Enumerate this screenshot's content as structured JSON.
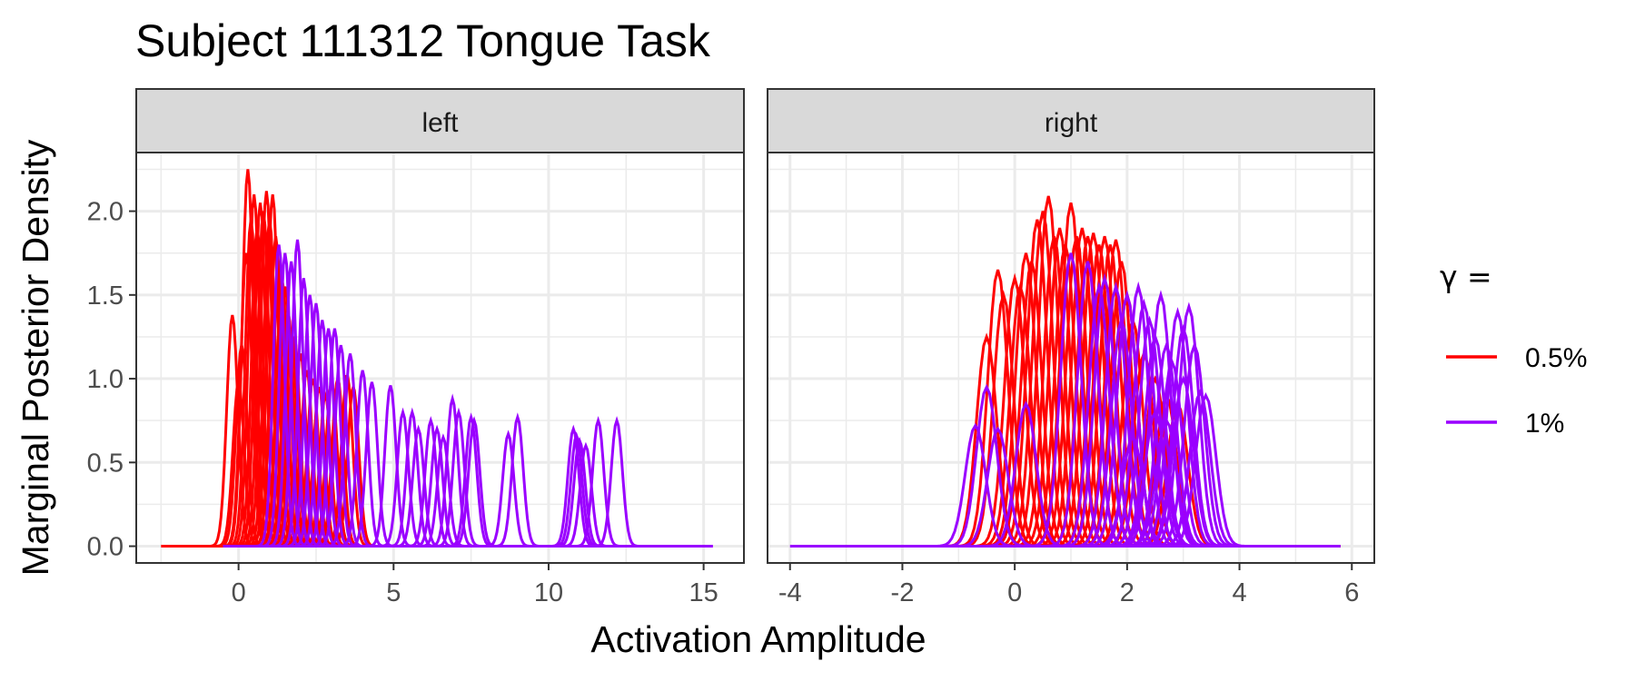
{
  "chart_data": {
    "type": "line",
    "title": "Subject 111312 Tongue Task",
    "xlabel": "Activation Amplitude",
    "ylabel": "Marginal Posterior Density",
    "grid": true,
    "legend_position": "right",
    "legend": {
      "title": "γ =",
      "entries": [
        {
          "label": "0.5%",
          "color": "#ff0000"
        },
        {
          "label": "1%",
          "color": "#9a00ff"
        }
      ]
    },
    "y_ticks": [
      "0.0",
      "0.5",
      "1.0",
      "1.5",
      "2.0"
    ],
    "ylim": [
      -0.1,
      2.35
    ],
    "panels": [
      {
        "strip": "left",
        "xlim": [
          -3.3,
          16.3
        ],
        "x_ticks": [
          "0",
          "5",
          "10",
          "15"
        ],
        "x_tick_values": [
          0,
          5,
          10,
          15
        ],
        "series": [
          {
            "name": "0.5%",
            "color": "#ff0000",
            "range": [
              -2.5,
              4.6
            ],
            "peaks": [
              [
                -0.2,
                1.38
              ],
              [
                0.0,
                0.98
              ],
              [
                0.1,
                1.2
              ],
              [
                0.25,
                1.75
              ],
              [
                0.3,
                2.25
              ],
              [
                0.4,
                1.95
              ],
              [
                0.5,
                2.1
              ],
              [
                0.6,
                1.9
              ],
              [
                0.7,
                2.05
              ],
              [
                0.8,
                2.0
              ],
              [
                0.9,
                2.12
              ],
              [
                1.0,
                1.95
              ],
              [
                1.1,
                2.1
              ],
              [
                1.2,
                1.85
              ],
              [
                1.3,
                1.7
              ],
              [
                1.4,
                1.6
              ],
              [
                1.5,
                1.55
              ],
              [
                1.6,
                1.4
              ],
              [
                1.7,
                1.3
              ],
              [
                1.8,
                1.25
              ],
              [
                2.0,
                1.15
              ],
              [
                2.2,
                1.05
              ],
              [
                2.4,
                1.0
              ],
              [
                2.6,
                0.95
              ],
              [
                2.8,
                0.9
              ],
              [
                3.0,
                0.98
              ],
              [
                3.2,
                1.0
              ],
              [
                3.5,
                1.02
              ],
              [
                3.7,
                0.95
              ]
            ]
          },
          {
            "name": "1%",
            "color": "#9a00ff",
            "range": [
              -0.5,
              15.3
            ],
            "peaks": [
              [
                1.3,
                1.8
              ],
              [
                1.5,
                1.75
              ],
              [
                1.7,
                1.7
              ],
              [
                1.9,
                1.83
              ],
              [
                2.1,
                1.6
              ],
              [
                2.3,
                1.5
              ],
              [
                2.5,
                1.45
              ],
              [
                2.7,
                1.35
              ],
              [
                2.9,
                1.3
              ],
              [
                3.1,
                1.3
              ],
              [
                3.3,
                1.2
              ],
              [
                3.6,
                1.15
              ],
              [
                4.0,
                1.05
              ],
              [
                4.3,
                0.98
              ],
              [
                4.9,
                0.96
              ],
              [
                5.3,
                0.8
              ],
              [
                5.6,
                0.8
              ],
              [
                5.8,
                0.7
              ],
              [
                6.2,
                0.75
              ],
              [
                6.4,
                0.7
              ],
              [
                6.6,
                0.65
              ],
              [
                6.9,
                0.88
              ],
              [
                7.1,
                0.8
              ],
              [
                7.5,
                0.77
              ],
              [
                7.6,
                0.75
              ],
              [
                8.7,
                0.67
              ],
              [
                9.0,
                0.77
              ],
              [
                10.8,
                0.7
              ],
              [
                10.9,
                0.66
              ],
              [
                11.0,
                0.63
              ],
              [
                11.2,
                0.6
              ],
              [
                11.6,
                0.75
              ],
              [
                12.2,
                0.75
              ]
            ]
          }
        ]
      },
      {
        "strip": "right",
        "xlim": [
          -4.4,
          6.4
        ],
        "x_ticks": [
          "-4",
          "-2",
          "0",
          "2",
          "4",
          "6"
        ],
        "x_tick_values": [
          -4,
          -2,
          0,
          2,
          4,
          6
        ],
        "series": [
          {
            "name": "0.5%",
            "color": "#ff0000",
            "range": [
              -2.5,
              5.8
            ],
            "peaks": [
              [
                -0.5,
                1.25
              ],
              [
                -0.3,
                1.65
              ],
              [
                -0.2,
                1.5
              ],
              [
                0.0,
                1.6
              ],
              [
                0.1,
                1.55
              ],
              [
                0.2,
                1.75
              ],
              [
                0.3,
                1.7
              ],
              [
                0.4,
                1.95
              ],
              [
                0.5,
                2.0
              ],
              [
                0.6,
                2.09
              ],
              [
                0.7,
                1.85
              ],
              [
                0.8,
                1.9
              ],
              [
                0.9,
                1.8
              ],
              [
                1.0,
                2.05
              ],
              [
                1.1,
                1.85
              ],
              [
                1.2,
                1.9
              ],
              [
                1.3,
                1.85
              ],
              [
                1.4,
                1.87
              ],
              [
                1.5,
                1.8
              ],
              [
                1.6,
                1.85
              ],
              [
                1.7,
                1.8
              ],
              [
                1.8,
                1.83
              ],
              [
                1.9,
                1.7
              ],
              [
                2.0,
                1.5
              ],
              [
                2.1,
                1.35
              ],
              [
                2.3,
                1.15
              ],
              [
                2.5,
                1.0
              ],
              [
                2.7,
                0.9
              ],
              [
                2.9,
                0.85
              ]
            ]
          },
          {
            "name": "1%",
            "color": "#9a00ff",
            "range": [
              -4.0,
              5.8
            ],
            "peaks": [
              [
                -0.7,
                0.72
              ],
              [
                -0.5,
                0.95
              ],
              [
                -0.3,
                0.7
              ],
              [
                0.2,
                0.85
              ],
              [
                1.0,
                1.75
              ],
              [
                1.3,
                1.7
              ],
              [
                1.6,
                1.6
              ],
              [
                1.8,
                1.55
              ],
              [
                2.0,
                1.5
              ],
              [
                2.2,
                1.55
              ],
              [
                2.4,
                1.35
              ],
              [
                2.5,
                1.25
              ],
              [
                2.6,
                1.5
              ],
              [
                2.7,
                1.2
              ],
              [
                2.8,
                1.1
              ],
              [
                2.9,
                1.4
              ],
              [
                3.0,
                1.3
              ],
              [
                3.1,
                1.43
              ],
              [
                3.2,
                1.2
              ],
              [
                3.3,
                0.92
              ],
              [
                3.4,
                0.9
              ],
              [
                1.5,
                1.55
              ],
              [
                2.3,
                1.45
              ],
              [
                1.9,
                1.35
              ],
              [
                2.1,
                0.65
              ],
              [
                2.5,
                0.8
              ],
              [
                2.7,
                0.75
              ],
              [
                3.0,
                1.0
              ]
            ]
          }
        ]
      }
    ]
  }
}
